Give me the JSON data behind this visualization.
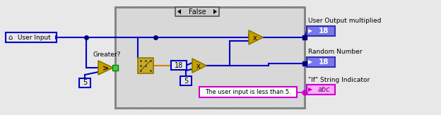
{
  "bg_color": "#e8e8e8",
  "blue": "#0000cc",
  "dark_blue": "#000080",
  "blue_box": "#4444cc",
  "gold": "#c8a000",
  "magenta": "#cc00cc",
  "green_dot": "#44cc44",
  "case_border": "#555555",
  "case_bg": "#d4d4d4",
  "false_tab_bg": "#cccccc",
  "white": "#ffffff",
  "indicator_blue_bg": "#6666ff",
  "indicator_pink_bg": "#ff88ff",
  "user_input_label": "User Input",
  "greater_label": "Greater?",
  "false_label": "False",
  "value5_label": "5",
  "value18_label": "18",
  "value5b_label": "5",
  "string_text": "The user input is less than 5.",
  "out1_label": "User Output multiplied",
  "out2_label": "Random Number",
  "out3_label": "\"If\" String Indicator",
  "ind1_val": "18",
  "ind2_val": "18",
  "ind3_val": "abc"
}
